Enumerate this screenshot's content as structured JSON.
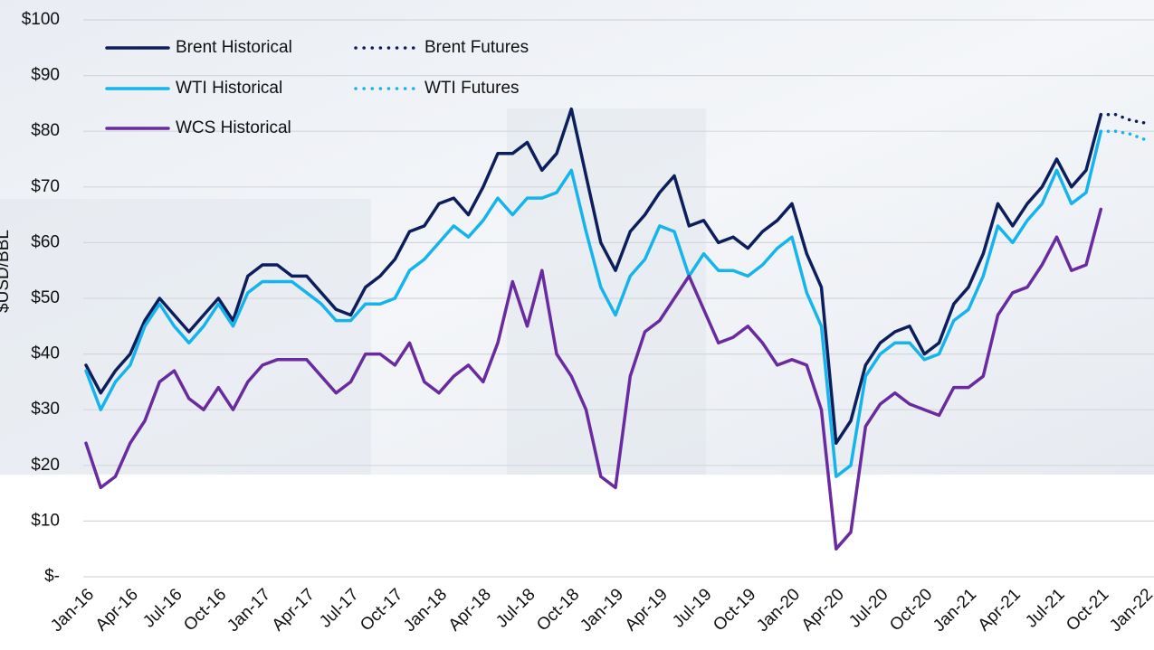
{
  "chart_data": {
    "type": "line",
    "ylabel": "$USD/BBL",
    "categories": [
      "Jan-16",
      null,
      null,
      "Apr-16",
      null,
      null,
      "Jul-16",
      null,
      null,
      "Oct-16",
      null,
      null,
      "Jan-17",
      null,
      null,
      "Apr-17",
      null,
      null,
      "Jul-17",
      null,
      null,
      "Oct-17",
      null,
      null,
      "Jan-18",
      null,
      null,
      "Apr-18",
      null,
      null,
      "Jul-18",
      null,
      null,
      "Oct-18",
      null,
      null,
      "Jan-19",
      null,
      null,
      "Apr-19",
      null,
      null,
      "Jul-19",
      null,
      null,
      "Oct-19",
      null,
      null,
      "Jan-20",
      null,
      null,
      "Apr-20",
      null,
      null,
      "Jul-20",
      null,
      null,
      "Oct-20",
      null,
      null,
      "Jan-21",
      null,
      null,
      "Apr-21",
      null,
      null,
      "Jul-21",
      null,
      null,
      "Oct-21",
      null,
      null,
      "Jan-22"
    ],
    "series": [
      {
        "name": "Brent Historical",
        "color": "#0c1f5c",
        "style": "solid",
        "values": [
          38,
          33,
          37,
          40,
          46,
          50,
          47,
          44,
          47,
          50,
          46,
          54,
          56,
          56,
          54,
          54,
          51,
          48,
          47,
          52,
          54,
          57,
          62,
          63,
          67,
          68,
          65,
          70,
          76,
          76,
          78,
          73,
          76,
          84,
          72,
          60,
          55,
          62,
          65,
          69,
          72,
          63,
          64,
          60,
          61,
          59,
          62,
          64,
          67,
          58,
          52,
          24,
          28,
          38,
          42,
          44,
          45,
          40,
          42,
          49,
          52,
          58,
          67,
          63,
          67,
          70,
          75,
          70,
          73,
          83,
          null,
          null,
          null
        ]
      },
      {
        "name": "WTI Historical",
        "color": "#16b4ec",
        "style": "solid",
        "values": [
          37,
          30,
          35,
          38,
          45,
          49,
          45,
          42,
          45,
          49,
          45,
          51,
          53,
          53,
          53,
          51,
          49,
          46,
          46,
          49,
          49,
          50,
          55,
          57,
          60,
          63,
          61,
          64,
          68,
          65,
          68,
          68,
          69,
          73,
          62,
          52,
          47,
          54,
          57,
          63,
          62,
          54,
          58,
          55,
          55,
          54,
          56,
          59,
          61,
          51,
          45,
          18,
          20,
          36,
          40,
          42,
          42,
          39,
          40,
          46,
          48,
          54,
          63,
          60,
          64,
          67,
          73,
          67,
          69,
          80,
          null,
          null,
          null
        ]
      },
      {
        "name": "WCS Historical",
        "color": "#6a2aa0",
        "style": "solid",
        "values": [
          24,
          16,
          18,
          24,
          28,
          35,
          37,
          32,
          30,
          34,
          30,
          35,
          38,
          39,
          39,
          39,
          36,
          33,
          35,
          40,
          40,
          38,
          42,
          35,
          33,
          36,
          38,
          35,
          42,
          53,
          45,
          55,
          40,
          36,
          30,
          18,
          16,
          36,
          44,
          46,
          50,
          54,
          48,
          42,
          43,
          45,
          42,
          38,
          39,
          38,
          30,
          5,
          8,
          27,
          31,
          33,
          31,
          30,
          29,
          34,
          34,
          36,
          47,
          51,
          52,
          56,
          61,
          55,
          56,
          66,
          null,
          null,
          null
        ]
      },
      {
        "name": "Brent Futures",
        "color": "#0c1f5c",
        "style": "dotted",
        "values": [
          null,
          null,
          null,
          null,
          null,
          null,
          null,
          null,
          null,
          null,
          null,
          null,
          null,
          null,
          null,
          null,
          null,
          null,
          null,
          null,
          null,
          null,
          null,
          null,
          null,
          null,
          null,
          null,
          null,
          null,
          null,
          null,
          null,
          null,
          null,
          null,
          null,
          null,
          null,
          null,
          null,
          null,
          null,
          null,
          null,
          null,
          null,
          null,
          null,
          null,
          null,
          null,
          null,
          null,
          null,
          null,
          null,
          null,
          null,
          null,
          null,
          null,
          null,
          null,
          null,
          null,
          null,
          null,
          null,
          83,
          83,
          82,
          81.5
        ]
      },
      {
        "name": "WTI Futures",
        "color": "#16b4ec",
        "style": "dotted",
        "values": [
          null,
          null,
          null,
          null,
          null,
          null,
          null,
          null,
          null,
          null,
          null,
          null,
          null,
          null,
          null,
          null,
          null,
          null,
          null,
          null,
          null,
          null,
          null,
          null,
          null,
          null,
          null,
          null,
          null,
          null,
          null,
          null,
          null,
          null,
          null,
          null,
          null,
          null,
          null,
          null,
          null,
          null,
          null,
          null,
          null,
          null,
          null,
          null,
          null,
          null,
          null,
          null,
          null,
          null,
          null,
          null,
          null,
          null,
          null,
          null,
          null,
          null,
          null,
          null,
          null,
          null,
          null,
          null,
          null,
          80,
          80,
          79.5,
          78.5
        ]
      }
    ],
    "ylim": [
      0,
      100
    ],
    "yticks": [
      {
        "value": 0,
        "label": "$-"
      },
      {
        "value": 10,
        "label": "$10"
      },
      {
        "value": 20,
        "label": "$20"
      },
      {
        "value": 30,
        "label": "$30"
      },
      {
        "value": 40,
        "label": "$40"
      },
      {
        "value": 50,
        "label": "$50"
      },
      {
        "value": 60,
        "label": "$60"
      },
      {
        "value": 70,
        "label": "$70"
      },
      {
        "value": 80,
        "label": "$80"
      },
      {
        "value": 90,
        "label": "$90"
      },
      {
        "value": 100,
        "label": "$100"
      }
    ],
    "grid": true,
    "legend": "upper left"
  }
}
